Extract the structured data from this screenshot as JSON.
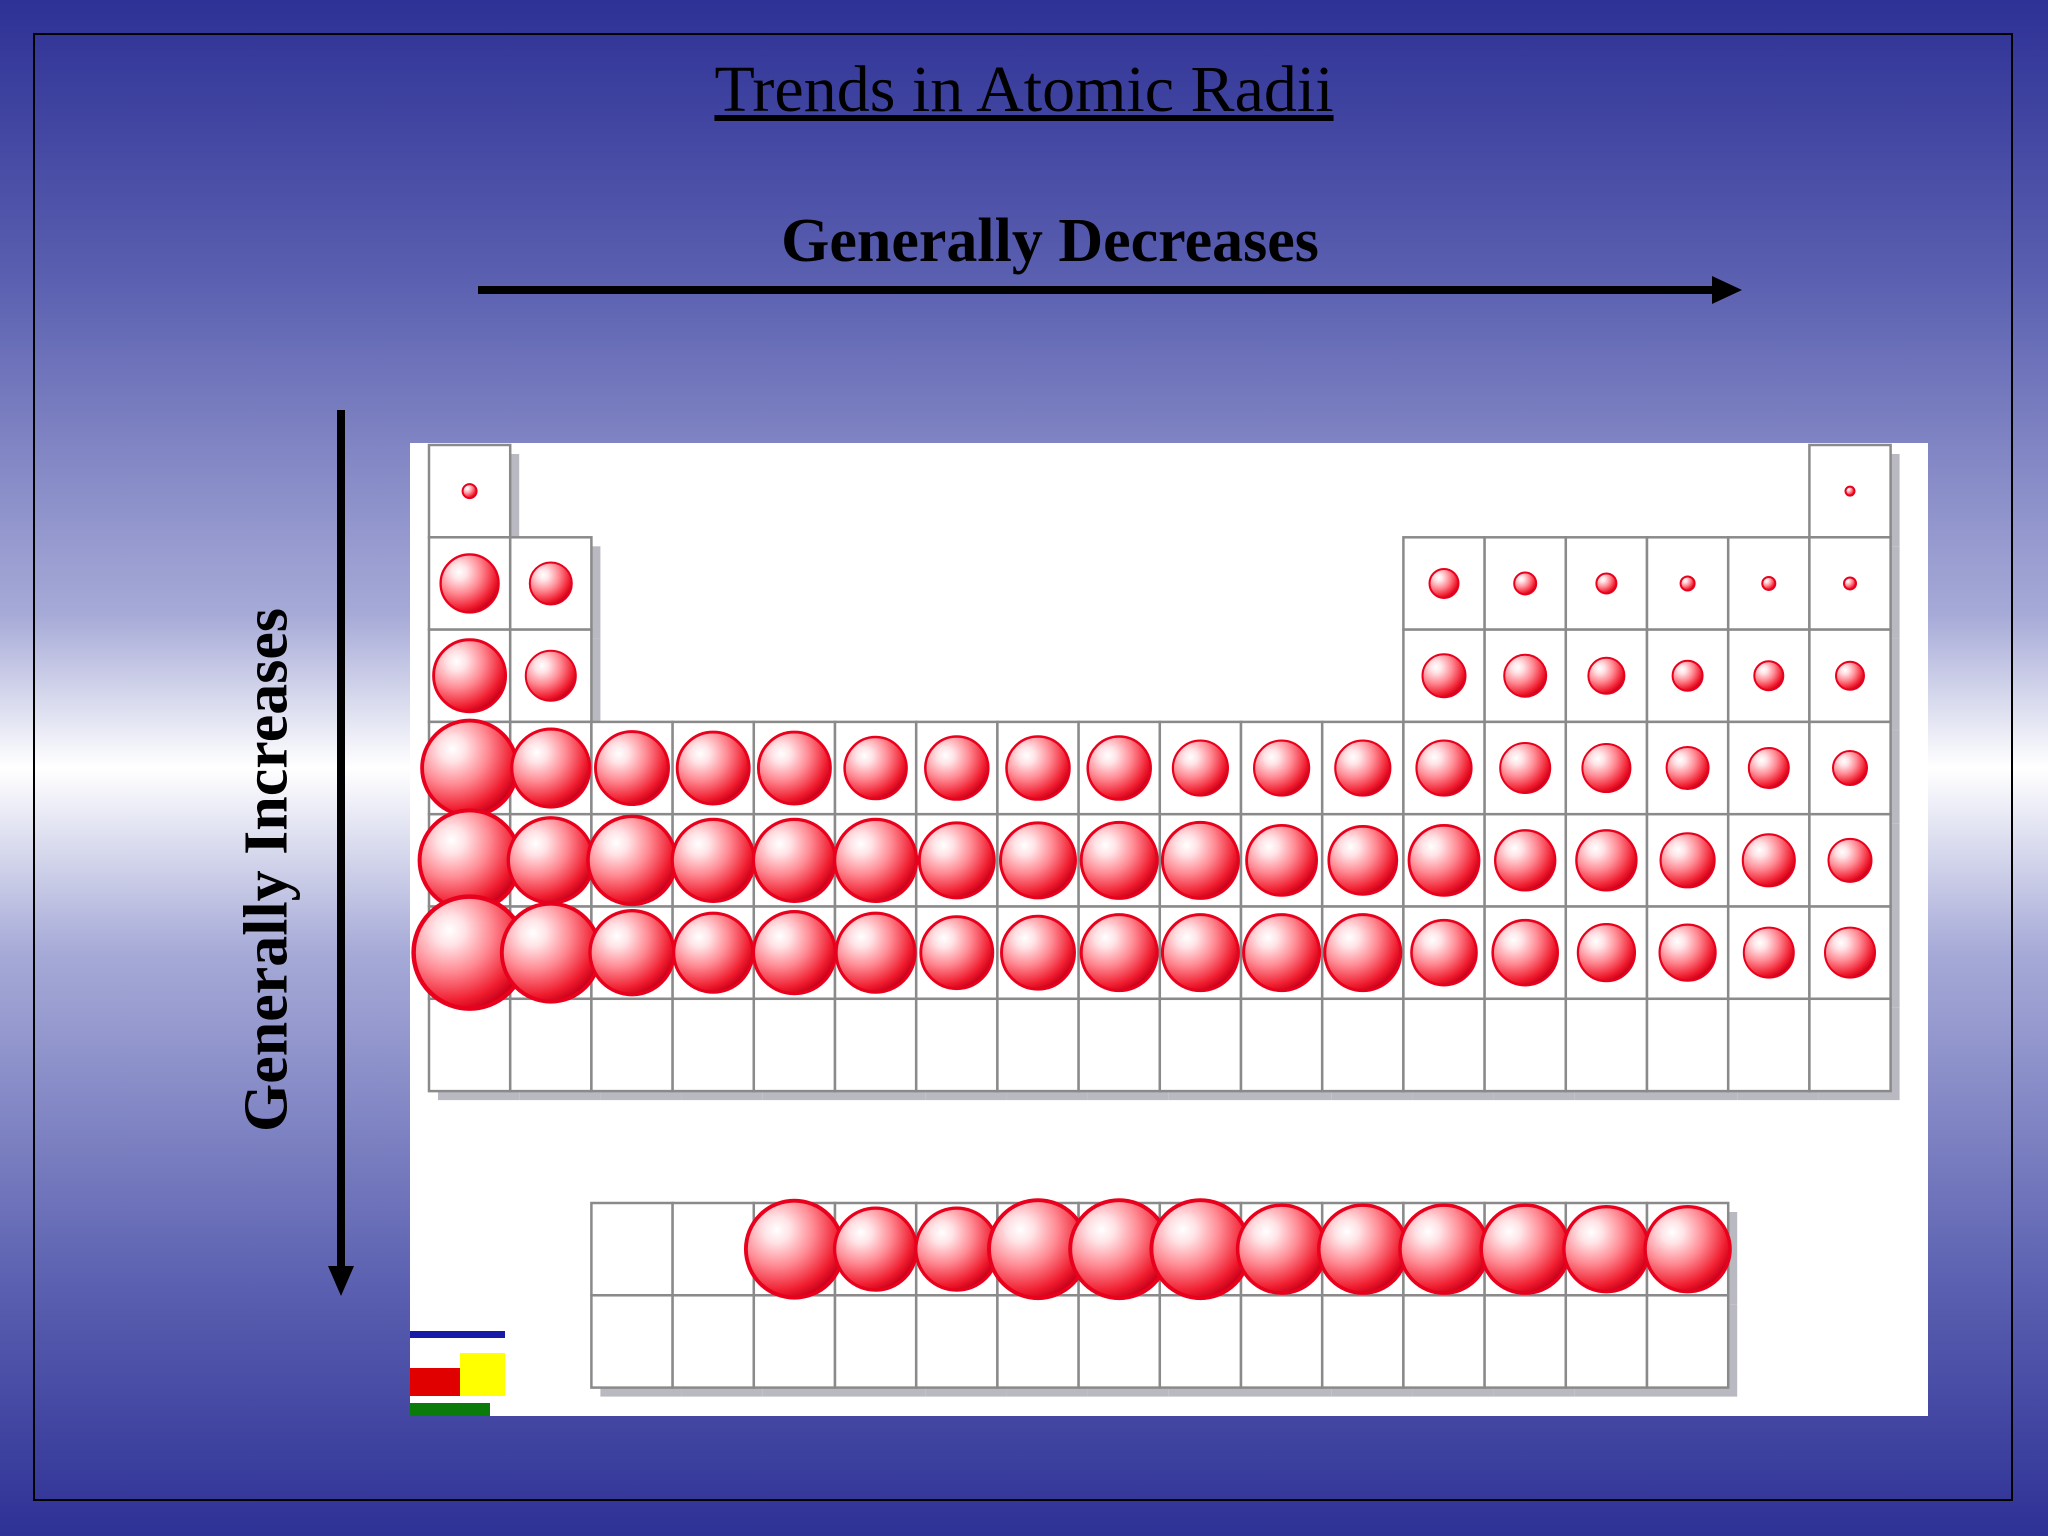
{
  "slide": {
    "title": "Trends in Atomic Radii",
    "across_label": "Generally Decreases",
    "down_label": "Generally Increases"
  },
  "colors": {
    "background_dark": "#2e3195",
    "background_light": "#ffffff",
    "atom": "#e8001c",
    "grid_line": "#8a8a8a",
    "shadow": "#b9b9c1",
    "arrow": "#000000",
    "logo_blue": "#1a1aa8",
    "logo_red": "#e00000",
    "logo_yellow": "#ffff00",
    "logo_green": "#0a7a0a"
  },
  "periodic_table": {
    "main_rows": [
      {
        "period": 1,
        "cells": [
          {
            "col": 1,
            "size": 0.14
          },
          {
            "col": 18,
            "size": 0.09
          }
        ]
      },
      {
        "period": 2,
        "cells": [
          {
            "col": 1,
            "size": 0.58
          },
          {
            "col": 2,
            "size": 0.42
          },
          {
            "col": 13,
            "size": 0.29
          },
          {
            "col": 14,
            "size": 0.22
          },
          {
            "col": 15,
            "size": 0.2
          },
          {
            "col": 16,
            "size": 0.14
          },
          {
            "col": 17,
            "size": 0.13
          },
          {
            "col": 18,
            "size": 0.12
          }
        ]
      },
      {
        "period": 3,
        "cells": [
          {
            "col": 1,
            "size": 0.72
          },
          {
            "col": 2,
            "size": 0.5
          },
          {
            "col": 13,
            "size": 0.43
          },
          {
            "col": 14,
            "size": 0.42
          },
          {
            "col": 15,
            "size": 0.36
          },
          {
            "col": 16,
            "size": 0.3
          },
          {
            "col": 17,
            "size": 0.29
          },
          {
            "col": 18,
            "size": 0.28
          }
        ]
      },
      {
        "period": 4,
        "cells": [
          {
            "col": 1,
            "size": 0.95
          },
          {
            "col": 2,
            "size": 0.78
          },
          {
            "col": 3,
            "size": 0.73
          },
          {
            "col": 4,
            "size": 0.72
          },
          {
            "col": 5,
            "size": 0.72
          },
          {
            "col": 6,
            "size": 0.62
          },
          {
            "col": 7,
            "size": 0.63
          },
          {
            "col": 8,
            "size": 0.63
          },
          {
            "col": 9,
            "size": 0.63
          },
          {
            "col": 10,
            "size": 0.55
          },
          {
            "col": 11,
            "size": 0.55
          },
          {
            "col": 12,
            "size": 0.55
          },
          {
            "col": 13,
            "size": 0.55
          },
          {
            "col": 14,
            "size": 0.5
          },
          {
            "col": 15,
            "size": 0.48
          },
          {
            "col": 16,
            "size": 0.42
          },
          {
            "col": 17,
            "size": 0.4
          },
          {
            "col": 18,
            "size": 0.34
          }
        ]
      },
      {
        "period": 5,
        "cells": [
          {
            "col": 1,
            "size": 1.0
          },
          {
            "col": 2,
            "size": 0.85
          },
          {
            "col": 3,
            "size": 0.88
          },
          {
            "col": 4,
            "size": 0.82
          },
          {
            "col": 5,
            "size": 0.82
          },
          {
            "col": 6,
            "size": 0.82
          },
          {
            "col": 7,
            "size": 0.75
          },
          {
            "col": 8,
            "size": 0.75
          },
          {
            "col": 9,
            "size": 0.76
          },
          {
            "col": 10,
            "size": 0.76
          },
          {
            "col": 11,
            "size": 0.7
          },
          {
            "col": 12,
            "size": 0.68
          },
          {
            "col": 13,
            "size": 0.7
          },
          {
            "col": 14,
            "size": 0.6
          },
          {
            "col": 15,
            "size": 0.6
          },
          {
            "col": 16,
            "size": 0.54
          },
          {
            "col": 17,
            "size": 0.52
          },
          {
            "col": 18,
            "size": 0.43
          }
        ]
      },
      {
        "period": 6,
        "cells": [
          {
            "col": 1,
            "size": 1.12
          },
          {
            "col": 2,
            "size": 0.98
          },
          {
            "col": 3,
            "size": 0.84
          },
          {
            "col": 4,
            "size": 0.79
          },
          {
            "col": 5,
            "size": 0.82
          },
          {
            "col": 6,
            "size": 0.79
          },
          {
            "col": 7,
            "size": 0.72
          },
          {
            "col": 8,
            "size": 0.73
          },
          {
            "col": 9,
            "size": 0.76
          },
          {
            "col": 10,
            "size": 0.76
          },
          {
            "col": 11,
            "size": 0.76
          },
          {
            "col": 12,
            "size": 0.76
          },
          {
            "col": 13,
            "size": 0.65
          },
          {
            "col": 14,
            "size": 0.65
          },
          {
            "col": 15,
            "size": 0.57
          },
          {
            "col": 16,
            "size": 0.56
          },
          {
            "col": 17,
            "size": 0.5
          },
          {
            "col": 18,
            "size": 0.5
          }
        ]
      },
      {
        "period": 7,
        "cells": []
      }
    ],
    "f_block_rows": [
      {
        "row": 1,
        "cells": [
          {
            "col": 3,
            "size": 0.97
          },
          {
            "col": 4,
            "size": 0.82
          },
          {
            "col": 5,
            "size": 0.82
          },
          {
            "col": 6,
            "size": 0.98
          },
          {
            "col": 7,
            "size": 0.98
          },
          {
            "col": 8,
            "size": 0.98
          },
          {
            "col": 9,
            "size": 0.88
          },
          {
            "col": 10,
            "size": 0.88
          },
          {
            "col": 11,
            "size": 0.88
          },
          {
            "col": 12,
            "size": 0.88
          },
          {
            "col": 13,
            "size": 0.85
          },
          {
            "col": 14,
            "size": 0.85
          }
        ]
      },
      {
        "row": 2,
        "cells": []
      }
    ]
  }
}
